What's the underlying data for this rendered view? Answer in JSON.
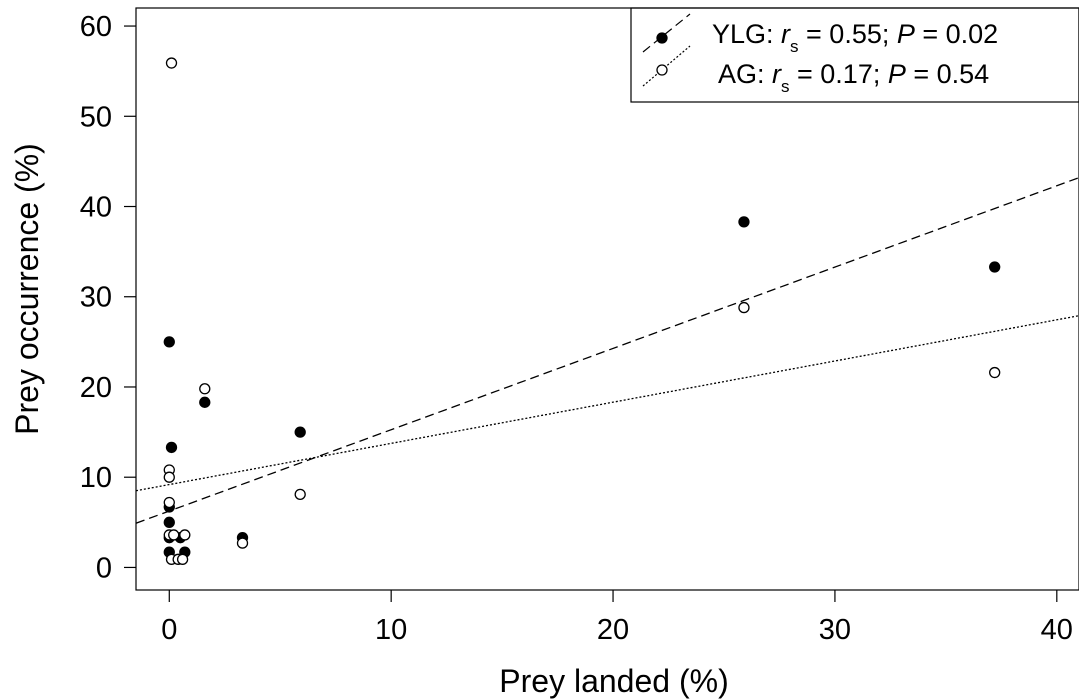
{
  "chart_data": {
    "type": "scatter",
    "xlabel": "Prey landed (%)",
    "ylabel": "Prey occurrence (%)",
    "xlim": [
      -1.5,
      41
    ],
    "ylim": [
      -2.5,
      62
    ],
    "xticks": [
      0,
      10,
      20,
      30,
      40
    ],
    "yticks": [
      0,
      10,
      20,
      30,
      40,
      50,
      60
    ],
    "grid": false,
    "legend_position": "top-right",
    "series": [
      {
        "name": "YLG",
        "marker": "filled-circle",
        "stat_label": "r",
        "stat_subscript": "s",
        "stat_rest": "= 0.55;",
        "p_label": "P",
        "p_rest": "= 0.02",
        "points": [
          [
            0.0,
            25.0
          ],
          [
            0.1,
            13.3
          ],
          [
            0.0,
            6.7
          ],
          [
            0.0,
            5.0
          ],
          [
            0.0,
            3.3
          ],
          [
            0.0,
            1.7
          ],
          [
            0.5,
            3.3
          ],
          [
            0.7,
            1.7
          ],
          [
            1.6,
            18.3
          ],
          [
            3.3,
            3.3
          ],
          [
            5.9,
            15.0
          ],
          [
            25.9,
            38.3
          ],
          [
            37.2,
            33.3
          ]
        ],
        "trend": {
          "style": "dashed",
          "x": [
            -1.5,
            41
          ],
          "y": [
            4.9,
            43.2
          ]
        }
      },
      {
        "name": "AG",
        "marker": "open-circle",
        "stat_label": "r",
        "stat_subscript": "s",
        "stat_rest": "= 0.17;",
        "p_label": "P",
        "p_rest": "= 0.54",
        "points": [
          [
            0.1,
            55.9
          ],
          [
            0.0,
            10.8
          ],
          [
            0.0,
            10.0
          ],
          [
            0.0,
            7.2
          ],
          [
            0.0,
            3.6
          ],
          [
            0.2,
            3.6
          ],
          [
            0.7,
            3.6
          ],
          [
            0.1,
            0.9
          ],
          [
            0.4,
            0.9
          ],
          [
            0.6,
            0.9
          ],
          [
            1.6,
            19.8
          ],
          [
            3.3,
            2.7
          ],
          [
            5.9,
            8.1
          ],
          [
            25.9,
            28.8
          ],
          [
            37.2,
            21.6
          ]
        ],
        "trend": {
          "style": "dotted",
          "x": [
            -1.5,
            41
          ],
          "y": [
            8.5,
            27.9
          ]
        }
      }
    ]
  }
}
